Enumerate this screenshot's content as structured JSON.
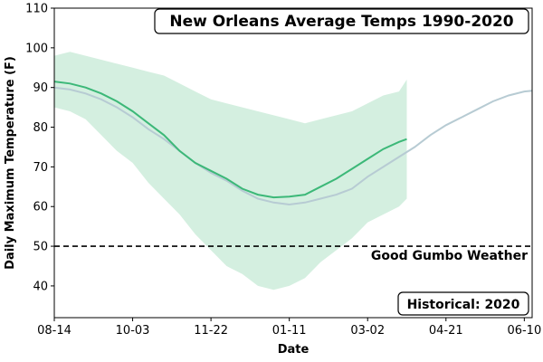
{
  "chart_data": {
    "type": "line",
    "title": "New Orleans Average Temps 1990-2020",
    "xlabel": "Date",
    "ylabel": "Daily Maximum Temperature (F)",
    "x_ticks": [
      "08-14",
      "10-03",
      "11-22",
      "01-11",
      "03-02",
      "04-21",
      "06-10"
    ],
    "x_range_days": [
      0,
      305
    ],
    "x_tick_days": [
      0,
      50,
      100,
      150,
      200,
      250,
      300
    ],
    "ylim": [
      32,
      110
    ],
    "y_ticks": [
      40,
      50,
      60,
      70,
      80,
      90,
      100,
      110
    ],
    "grid": false,
    "threshold": {
      "value": 50,
      "label": "Good Gumbo Weather",
      "style": "dashed"
    },
    "badge": "Historical: 2020",
    "colors": {
      "series_2020": "#3cb878",
      "band_2020": "#d4efe0",
      "historical": "#b7cbd3",
      "threshold": "#000000"
    },
    "series": [
      {
        "kind": "band",
        "x": [
          0,
          10,
          20,
          30,
          40,
          50,
          60,
          70,
          80,
          90,
          100,
          110,
          120,
          130,
          140,
          150,
          160,
          170,
          180,
          190,
          200,
          210,
          220,
          225
        ],
        "lower": [
          85,
          84,
          82,
          78,
          74,
          71,
          66,
          62,
          58,
          53,
          49,
          45,
          43,
          40,
          39,
          40,
          42,
          46,
          49,
          52,
          56,
          58,
          60,
          62
        ],
        "upper": [
          98,
          99,
          98,
          97,
          96,
          95,
          94,
          93,
          91,
          89,
          87,
          86,
          85,
          84,
          83,
          82,
          81,
          82,
          83,
          84,
          86,
          88,
          89,
          92
        ]
      },
      {
        "kind": "line",
        "color_key": "series_2020",
        "x": [
          0,
          10,
          20,
          30,
          40,
          50,
          60,
          70,
          80,
          90,
          100,
          110,
          120,
          130,
          140,
          150,
          160,
          170,
          180,
          190,
          200,
          210,
          220,
          225
        ],
        "y": [
          91.5,
          91,
          90,
          88.5,
          86.5,
          84,
          81,
          78,
          74,
          71,
          69,
          67,
          64.5,
          63,
          62.3,
          62.5,
          63,
          65,
          67,
          69.5,
          72,
          74.5,
          76.3,
          77
        ]
      },
      {
        "kind": "line",
        "color_key": "historical",
        "x": [
          0,
          10,
          20,
          30,
          40,
          50,
          60,
          70,
          80,
          90,
          100,
          110,
          120,
          130,
          140,
          150,
          160,
          170,
          180,
          190,
          200,
          210,
          220,
          230,
          240,
          250,
          260,
          270,
          280,
          290,
          300,
          305
        ],
        "y": [
          90,
          89.5,
          88.5,
          87,
          85,
          82.5,
          79.5,
          77,
          74,
          71,
          68.5,
          66.5,
          64,
          62,
          61,
          60.5,
          61,
          62,
          63,
          64.5,
          67.5,
          70,
          72.5,
          75,
          78,
          80.5,
          82.5,
          84.5,
          86.5,
          88,
          89,
          89.2
        ]
      }
    ]
  }
}
